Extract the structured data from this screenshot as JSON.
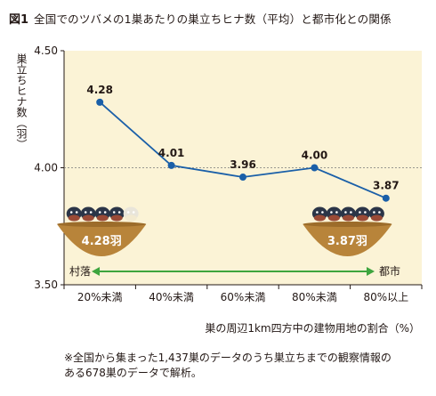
{
  "figure": {
    "number": "図1",
    "title": "全国でのツバメの1巣あたりの巣立ちヒナ数（平均）と都市化との関係"
  },
  "chart_data": {
    "type": "line",
    "ylabel": "巣立ちヒナ数（羽）",
    "xlabel": "巣の周辺1km四方中の建物用地の割合（%）",
    "categories": [
      "20%未満",
      "40%未満",
      "60%未満",
      "80%未満",
      "80%以上"
    ],
    "values": [
      4.28,
      4.01,
      3.96,
      4.0,
      3.87
    ],
    "data_labels": [
      "4.28",
      "4.01",
      "3.96",
      "4.00",
      "3.87"
    ],
    "ylim": [
      3.5,
      4.5
    ],
    "yticks": [
      "3.50",
      "4.00",
      "4.50"
    ],
    "reference_line": 4.0,
    "annotations": {
      "left_nest": "4.28羽",
      "right_nest": "3.87羽",
      "arrow_left": "村落",
      "arrow_right": "都市"
    },
    "colors": {
      "plot_bg": "#fbf3d6",
      "line": "#1a5fa8",
      "nest": "#b8843a",
      "arrow": "#3ea53e"
    }
  },
  "note": {
    "line1": "※全国から集まった1,437巣のデータのうち巣立ちまでの観察情報の",
    "line2": "ある678巣のデータで解析。"
  }
}
